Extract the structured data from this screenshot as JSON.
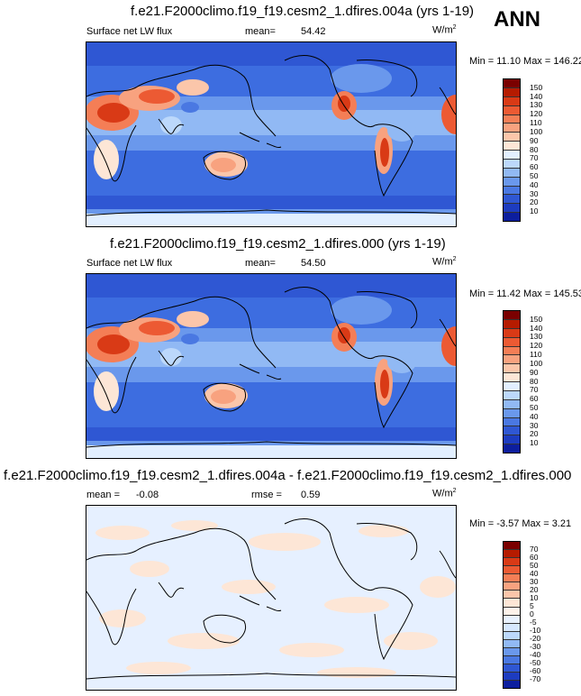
{
  "season": "ANN",
  "panels": [
    {
      "title": "f.e21.F2000climo.f19_f19.cesm2_1.dfires.004a (yrs 1-19)",
      "variable": "Surface net LW flux",
      "stat1_label": "mean=",
      "stat1_value": "54.42",
      "units": "W/m",
      "units_exp": "2",
      "minmax": "Min = 11.10 Max = 146.22",
      "levels": [
        "150",
        "140",
        "130",
        "120",
        "110",
        "100",
        "90",
        "80",
        "70",
        "60",
        "50",
        "40",
        "30",
        "20",
        "10"
      ],
      "colors": [
        "#7a0000",
        "#b51b00",
        "#d93a16",
        "#ec5a33",
        "#f47e56",
        "#f8a27f",
        "#fbc6aa",
        "#fde6d6",
        "#e2efff",
        "#bcd8fb",
        "#91b9f4",
        "#6a98ec",
        "#4a78e2",
        "#2f57d3",
        "#1d3cc0",
        "#0c1e9e"
      ]
    },
    {
      "title": "f.e21.F2000climo.f19_f19.cesm2_1.dfires.000 (yrs 1-19)",
      "variable": "Surface net LW flux",
      "stat1_label": "mean=",
      "stat1_value": "54.50",
      "units": "W/m",
      "units_exp": "2",
      "minmax": "Min = 11.42 Max = 145.53",
      "levels": [
        "150",
        "140",
        "130",
        "120",
        "110",
        "100",
        "90",
        "80",
        "70",
        "60",
        "50",
        "40",
        "30",
        "20",
        "10"
      ],
      "colors": [
        "#7a0000",
        "#b51b00",
        "#d93a16",
        "#ec5a33",
        "#f47e56",
        "#f8a27f",
        "#fbc6aa",
        "#fde6d6",
        "#e2efff",
        "#bcd8fb",
        "#91b9f4",
        "#6a98ec",
        "#4a78e2",
        "#2f57d3",
        "#1d3cc0",
        "#0c1e9e"
      ]
    },
    {
      "title": "f.e21.F2000climo.f19_f19.cesm2_1.dfires.004a - f.e21.F2000climo.f19_f19.cesm2_1.dfires.000",
      "stat1_label": "mean =",
      "stat1_value": "-0.08",
      "stat2_label": "rmse =",
      "stat2_value": "0.59",
      "units": "W/m",
      "units_exp": "2",
      "minmax": "Min = -3.57 Max =  3.21",
      "levels": [
        "70",
        "60",
        "50",
        "40",
        "30",
        "20",
        "10",
        "5",
        "0",
        "-5",
        "-10",
        "-20",
        "-30",
        "-40",
        "-50",
        "-60",
        "-70"
      ],
      "colors": [
        "#7a0000",
        "#b51b00",
        "#d93a16",
        "#ec5a33",
        "#f47e56",
        "#f8a27f",
        "#fbc6aa",
        "#fde6d6",
        "#fdf2ea",
        "#e8f2ff",
        "#d6e8ff",
        "#bcd8fb",
        "#91b9f4",
        "#6a98ec",
        "#4a78e2",
        "#2f57d3",
        "#1d3cc0",
        "#0c1e9e"
      ]
    }
  ]
}
